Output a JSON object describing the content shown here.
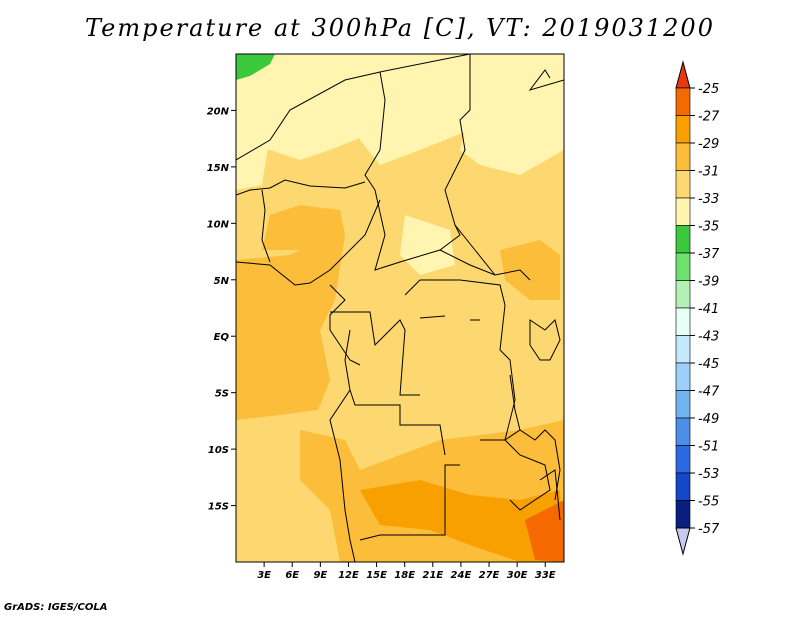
{
  "title": "Temperature at 300hPa [C], VT: 2019031200",
  "credit": "GrADS: IGES/COLA",
  "map": {
    "lon_range": [
      0,
      35
    ],
    "lat_range": [
      -20,
      25
    ],
    "lat_ticks": [
      {
        "value": 20,
        "label": "20N"
      },
      {
        "value": 15,
        "label": "15N"
      },
      {
        "value": 10,
        "label": "10N"
      },
      {
        "value": 5,
        "label": "5N"
      },
      {
        "value": 0,
        "label": "EQ"
      },
      {
        "value": -5,
        "label": "5S"
      },
      {
        "value": -10,
        "label": "10S"
      },
      {
        "value": -15,
        "label": "15S"
      }
    ],
    "lon_ticks": [
      {
        "value": 3,
        "label": "3E"
      },
      {
        "value": 6,
        "label": "6E"
      },
      {
        "value": 9,
        "label": "9E"
      },
      {
        "value": 12,
        "label": "12E"
      },
      {
        "value": 15,
        "label": "15E"
      },
      {
        "value": 18,
        "label": "18E"
      },
      {
        "value": 21,
        "label": "21E"
      },
      {
        "value": 24,
        "label": "24E"
      },
      {
        "value": 27,
        "label": "27E"
      },
      {
        "value": 30,
        "label": "30E"
      },
      {
        "value": 33,
        "label": "33E"
      }
    ]
  },
  "colorbar": {
    "labels": [
      "-25",
      "-27",
      "-29",
      "-31",
      "-33",
      "-35",
      "-37",
      "-39",
      "-41",
      "-43",
      "-45",
      "-47",
      "-49",
      "-51",
      "-53",
      "-55",
      "-57"
    ],
    "colors": [
      "#e8380d",
      "#f46a00",
      "#f8a000",
      "#fbbd3a",
      "#fdd870",
      "#fff4b0",
      "#3cc83c",
      "#6ee06e",
      "#b4f0b4",
      "#e8fff8",
      "#c4e8fc",
      "#9cd0f8",
      "#72b4f0",
      "#4a8ee8",
      "#2a6ae0",
      "#1448c8",
      "#0a1e80",
      "#c8c8f0"
    ]
  }
}
